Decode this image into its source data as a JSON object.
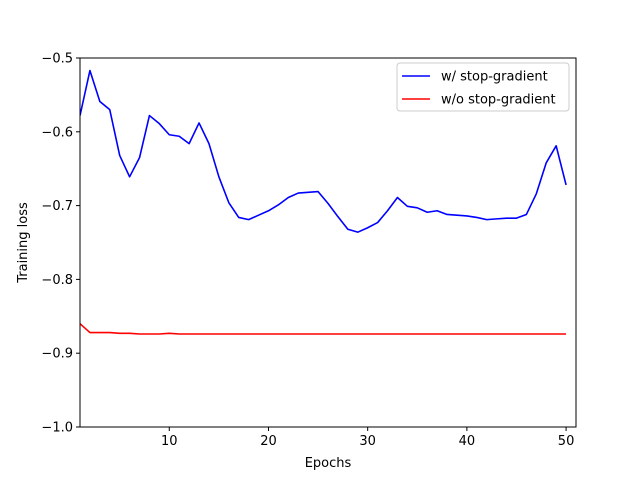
{
  "chart_data": {
    "type": "line",
    "xlabel": "Epochs",
    "ylabel": "Training loss",
    "xlim": [
      1,
      51
    ],
    "ylim": [
      -1.0,
      -0.5
    ],
    "xticks": [
      10,
      20,
      30,
      40,
      50
    ],
    "yticks": [
      -1.0,
      -0.9,
      -0.8,
      -0.7,
      -0.6,
      -0.5
    ],
    "ytick_labels": [
      "−1.0",
      "−0.9",
      "−0.8",
      "−0.7",
      "−0.6",
      "−0.5"
    ],
    "grid": false,
    "legend_position": "top-right",
    "series": [
      {
        "name": "w/ stop-gradient",
        "color": "#0000ff",
        "x": [
          1,
          2,
          3,
          4,
          5,
          6,
          7,
          8,
          9,
          10,
          11,
          12,
          13,
          14,
          15,
          16,
          17,
          18,
          19,
          20,
          21,
          22,
          23,
          24,
          25,
          26,
          27,
          28,
          29,
          30,
          31,
          32,
          33,
          34,
          35,
          36,
          37,
          38,
          39,
          40,
          41,
          42,
          43,
          44,
          45,
          46,
          47,
          48,
          49,
          50
        ],
        "y": [
          -0.578,
          -0.517,
          -0.559,
          -0.57,
          -0.632,
          -0.661,
          -0.635,
          -0.578,
          -0.589,
          -0.604,
          -0.606,
          -0.616,
          -0.588,
          -0.616,
          -0.661,
          -0.696,
          -0.716,
          -0.719,
          -0.713,
          -0.707,
          -0.699,
          -0.689,
          -0.683,
          -0.682,
          -0.681,
          -0.697,
          -0.715,
          -0.732,
          -0.736,
          -0.73,
          -0.723,
          -0.707,
          -0.689,
          -0.701,
          -0.703,
          -0.709,
          -0.707,
          -0.712,
          -0.713,
          -0.714,
          -0.716,
          -0.719,
          -0.718,
          -0.717,
          -0.717,
          -0.712,
          -0.684,
          -0.642,
          -0.619,
          -0.672
        ]
      },
      {
        "name": "w/o stop-gradient",
        "color": "#ff0000",
        "x": [
          1,
          2,
          3,
          4,
          5,
          6,
          7,
          8,
          9,
          10,
          11,
          12,
          13,
          14,
          15,
          16,
          17,
          18,
          19,
          20,
          21,
          22,
          23,
          24,
          25,
          26,
          27,
          28,
          29,
          30,
          31,
          32,
          33,
          34,
          35,
          36,
          37,
          38,
          39,
          40,
          41,
          42,
          43,
          44,
          45,
          46,
          47,
          48,
          49,
          50
        ],
        "y": [
          -0.86,
          -0.872,
          -0.872,
          -0.872,
          -0.873,
          -0.873,
          -0.874,
          -0.874,
          -0.874,
          -0.873,
          -0.874,
          -0.874,
          -0.874,
          -0.874,
          -0.874,
          -0.874,
          -0.874,
          -0.874,
          -0.874,
          -0.874,
          -0.874,
          -0.874,
          -0.874,
          -0.874,
          -0.874,
          -0.874,
          -0.874,
          -0.874,
          -0.874,
          -0.874,
          -0.874,
          -0.874,
          -0.874,
          -0.874,
          -0.874,
          -0.874,
          -0.874,
          -0.874,
          -0.874,
          -0.874,
          -0.874,
          -0.874,
          -0.874,
          -0.874,
          -0.874,
          -0.874,
          -0.874,
          -0.874,
          -0.874,
          -0.874
        ]
      }
    ]
  }
}
